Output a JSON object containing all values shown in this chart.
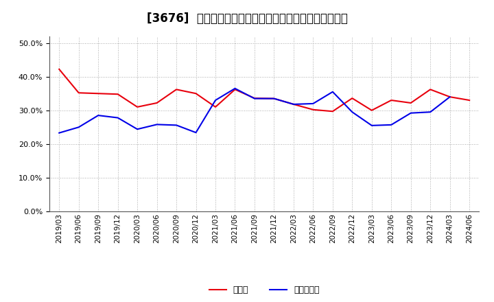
{
  "title": "[3676]  現顀金、有利子負債の総資産に対する比率の推移",
  "x_labels": [
    "2019/03",
    "2019/06",
    "2019/09",
    "2019/12",
    "2020/03",
    "2020/06",
    "2020/09",
    "2020/12",
    "2021/03",
    "2021/06",
    "2021/09",
    "2021/12",
    "2022/03",
    "2022/06",
    "2022/09",
    "2022/12",
    "2023/03",
    "2023/06",
    "2023/09",
    "2023/12",
    "2024/03",
    "2024/06"
  ],
  "cash": [
    0.422,
    0.352,
    0.35,
    0.348,
    0.31,
    0.322,
    0.362,
    0.35,
    0.31,
    0.362,
    0.336,
    0.335,
    0.318,
    0.302,
    0.297,
    0.336,
    0.3,
    0.33,
    0.322,
    0.362,
    0.34,
    0.33
  ],
  "debt": [
    0.233,
    0.25,
    0.285,
    0.278,
    0.244,
    0.258,
    0.256,
    0.234,
    0.33,
    0.365,
    0.335,
    0.335,
    0.318,
    0.32,
    0.355,
    0.295,
    0.255,
    0.257,
    0.292,
    0.295,
    0.34,
    null
  ],
  "cash_color": "#e8000d",
  "debt_color": "#0000e8",
  "ylim": [
    0.0,
    0.52
  ],
  "yticks": [
    0.0,
    0.1,
    0.2,
    0.3,
    0.4,
    0.5
  ],
  "legend_cash": "現顀金",
  "legend_debt": "有利子負債",
  "bg_color": "#ffffff",
  "plot_bg_color": "#ffffff",
  "grid_color": "#aaaaaa",
  "title_fontsize": 12
}
